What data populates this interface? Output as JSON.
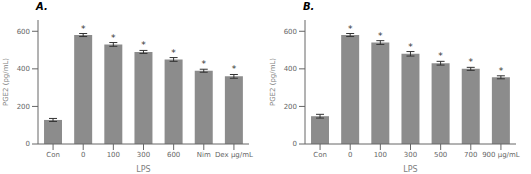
{
  "chart_data": [
    {
      "type": "bar",
      "title": "A.",
      "categories": [
        "Con",
        "0",
        "100",
        "300",
        "600",
        "Nim",
        "Dex μg/mL"
      ],
      "values": [
        128,
        580,
        530,
        490,
        450,
        390,
        360
      ],
      "errors": [
        8,
        8,
        10,
        8,
        10,
        8,
        10
      ],
      "ylabel": "PGE2 (pg/mL)",
      "xlabel": "LPS",
      "ylim": [
        0,
        660
      ],
      "yticks": [
        0,
        200,
        400,
        600
      ],
      "color": "#8c8c8c",
      "annotations": [
        {
          "x": "0",
          "text": "*"
        },
        {
          "x": "100",
          "text": "*"
        },
        {
          "x": "300",
          "text": "*"
        },
        {
          "x": "600",
          "text": "*"
        },
        {
          "x": "Nim",
          "text": "*"
        },
        {
          "x": "Dex μg/mL",
          "text": "*"
        }
      ]
    },
    {
      "type": "bar",
      "title": "B.",
      "categories": [
        "Con",
        "0",
        "100",
        "300",
        "500",
        "700",
        "900 μg/mL"
      ],
      "values": [
        148,
        580,
        540,
        480,
        430,
        400,
        355
      ],
      "errors": [
        10,
        8,
        10,
        12,
        10,
        8,
        8
      ],
      "ylabel": "PGE2 (pg/mL)",
      "xlabel": "LPS",
      "ylim": [
        0,
        660
      ],
      "yticks": [
        0,
        200,
        400,
        600
      ],
      "color": "#8c8c8c",
      "annotations": [
        {
          "x": "0",
          "text": "*"
        },
        {
          "x": "100",
          "text": "*"
        },
        {
          "x": "300",
          "text": "*"
        },
        {
          "x": "500",
          "text": "*"
        },
        {
          "x": "700",
          "text": "*"
        },
        {
          "x": "900 μg/mL",
          "text": "*"
        }
      ]
    }
  ]
}
